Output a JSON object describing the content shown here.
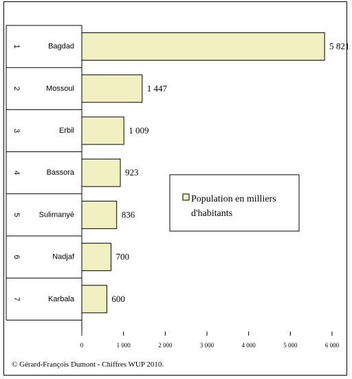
{
  "chart_data": {
    "type": "bar",
    "orientation": "horizontal",
    "categories": [
      "Bagdad",
      "Mossoul",
      "Erbil",
      "Bassora",
      "Sulimanyé",
      "Nadjaf",
      "Karbala"
    ],
    "ranks": [
      "1",
      "2",
      "3",
      "4",
      "5",
      "6",
      "7"
    ],
    "series": [
      {
        "name": "Population en milliers d'habitants",
        "legend_lines": [
          "Population en milliers",
          "d'habitants"
        ],
        "values": [
          5821,
          1447,
          1009,
          923,
          836,
          700,
          600
        ],
        "value_labels": [
          "5 821",
          "1 447",
          "1 009",
          "923",
          "836",
          "700",
          "600"
        ]
      }
    ],
    "xlim": [
      0,
      6000
    ],
    "x_ticks": [
      0,
      1000,
      2000,
      3000,
      4000,
      5000,
      6000
    ],
    "x_tick_labels": [
      "0",
      "1 000",
      "2 000",
      "3 000",
      "4 000",
      "5 000",
      "6 000"
    ],
    "grid": false,
    "legend_position": "center-right",
    "bar_color": "#F0F0C0",
    "source": "© Gérard-François Dumont - Chiffres WUP 2010."
  }
}
